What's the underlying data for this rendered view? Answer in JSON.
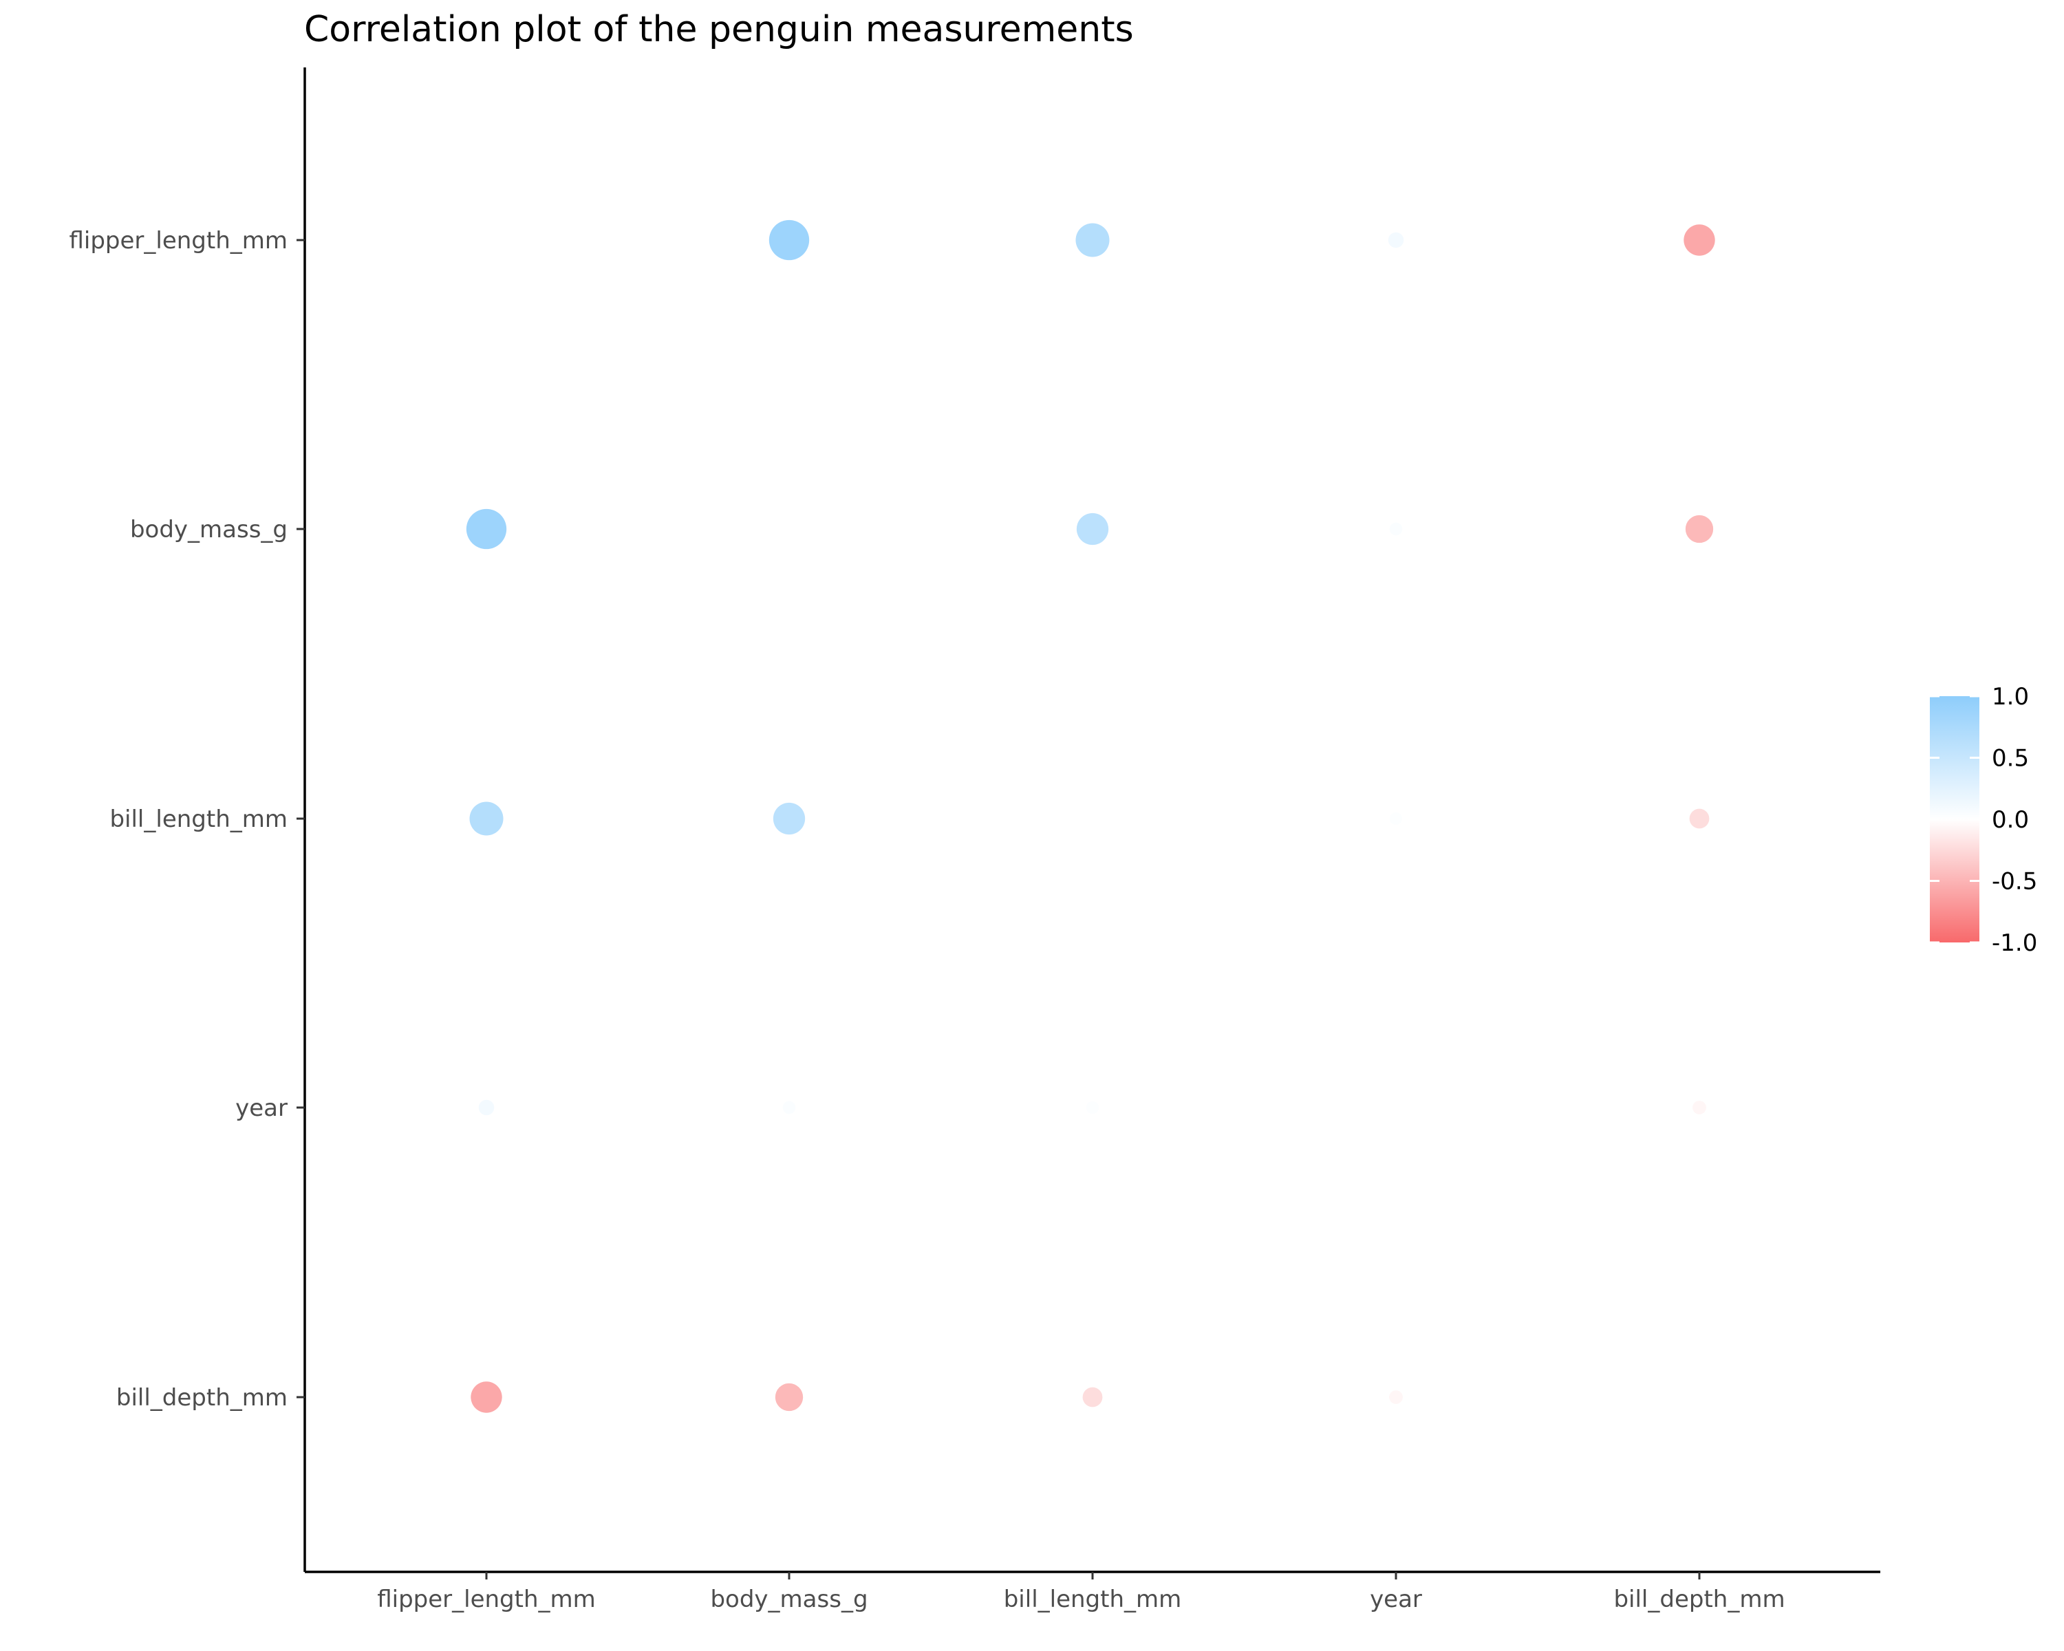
{
  "chart_data": {
    "type": "correlation-dot-plot",
    "title": "Correlation plot of the penguin measurements",
    "x_categories": [
      "flipper_length_mm",
      "body_mass_g",
      "bill_length_mm",
      "year",
      "bill_depth_mm"
    ],
    "y_categories": [
      "flipper_length_mm",
      "body_mass_g",
      "bill_length_mm",
      "year",
      "bill_depth_mm"
    ],
    "values": [
      {
        "x": "body_mass_g",
        "y": "flipper_length_mm",
        "value": 0.87
      },
      {
        "x": "bill_length_mm",
        "y": "flipper_length_mm",
        "value": 0.66
      },
      {
        "x": "year",
        "y": "flipper_length_mm",
        "value": 0.11
      },
      {
        "x": "bill_depth_mm",
        "y": "flipper_length_mm",
        "value": -0.58
      },
      {
        "x": "flipper_length_mm",
        "y": "body_mass_g",
        "value": 0.87
      },
      {
        "x": "bill_length_mm",
        "y": "body_mass_g",
        "value": 0.6
      },
      {
        "x": "year",
        "y": "body_mass_g",
        "value": 0.04
      },
      {
        "x": "bill_depth_mm",
        "y": "body_mass_g",
        "value": -0.47
      },
      {
        "x": "flipper_length_mm",
        "y": "bill_length_mm",
        "value": 0.66
      },
      {
        "x": "body_mass_g",
        "y": "bill_length_mm",
        "value": 0.6
      },
      {
        "x": "year",
        "y": "bill_length_mm",
        "value": 0.03
      },
      {
        "x": "bill_depth_mm",
        "y": "bill_length_mm",
        "value": -0.23
      },
      {
        "x": "flipper_length_mm",
        "y": "year",
        "value": 0.11
      },
      {
        "x": "body_mass_g",
        "y": "year",
        "value": 0.04
      },
      {
        "x": "bill_length_mm",
        "y": "year",
        "value": 0.03
      },
      {
        "x": "bill_depth_mm",
        "y": "year",
        "value": -0.06
      },
      {
        "x": "flipper_length_mm",
        "y": "bill_depth_mm",
        "value": -0.58
      },
      {
        "x": "body_mass_g",
        "y": "bill_depth_mm",
        "value": -0.47
      },
      {
        "x": "bill_length_mm",
        "y": "bill_depth_mm",
        "value": -0.23
      },
      {
        "x": "year",
        "y": "bill_depth_mm",
        "value": -0.06
      }
    ],
    "legend": {
      "position": "right",
      "min": -1.0,
      "max": 1.0,
      "ticks": [
        "1.0",
        "0.5",
        "0.0",
        "-0.5",
        "-1.0"
      ],
      "tick_values": [
        1.0,
        0.5,
        0.0,
        -0.5,
        -1.0
      ]
    },
    "colors": {
      "negative": "#F8696B",
      "neutral": "#FFFFFF",
      "positive": "#8ECDFB"
    },
    "grid": false
  }
}
